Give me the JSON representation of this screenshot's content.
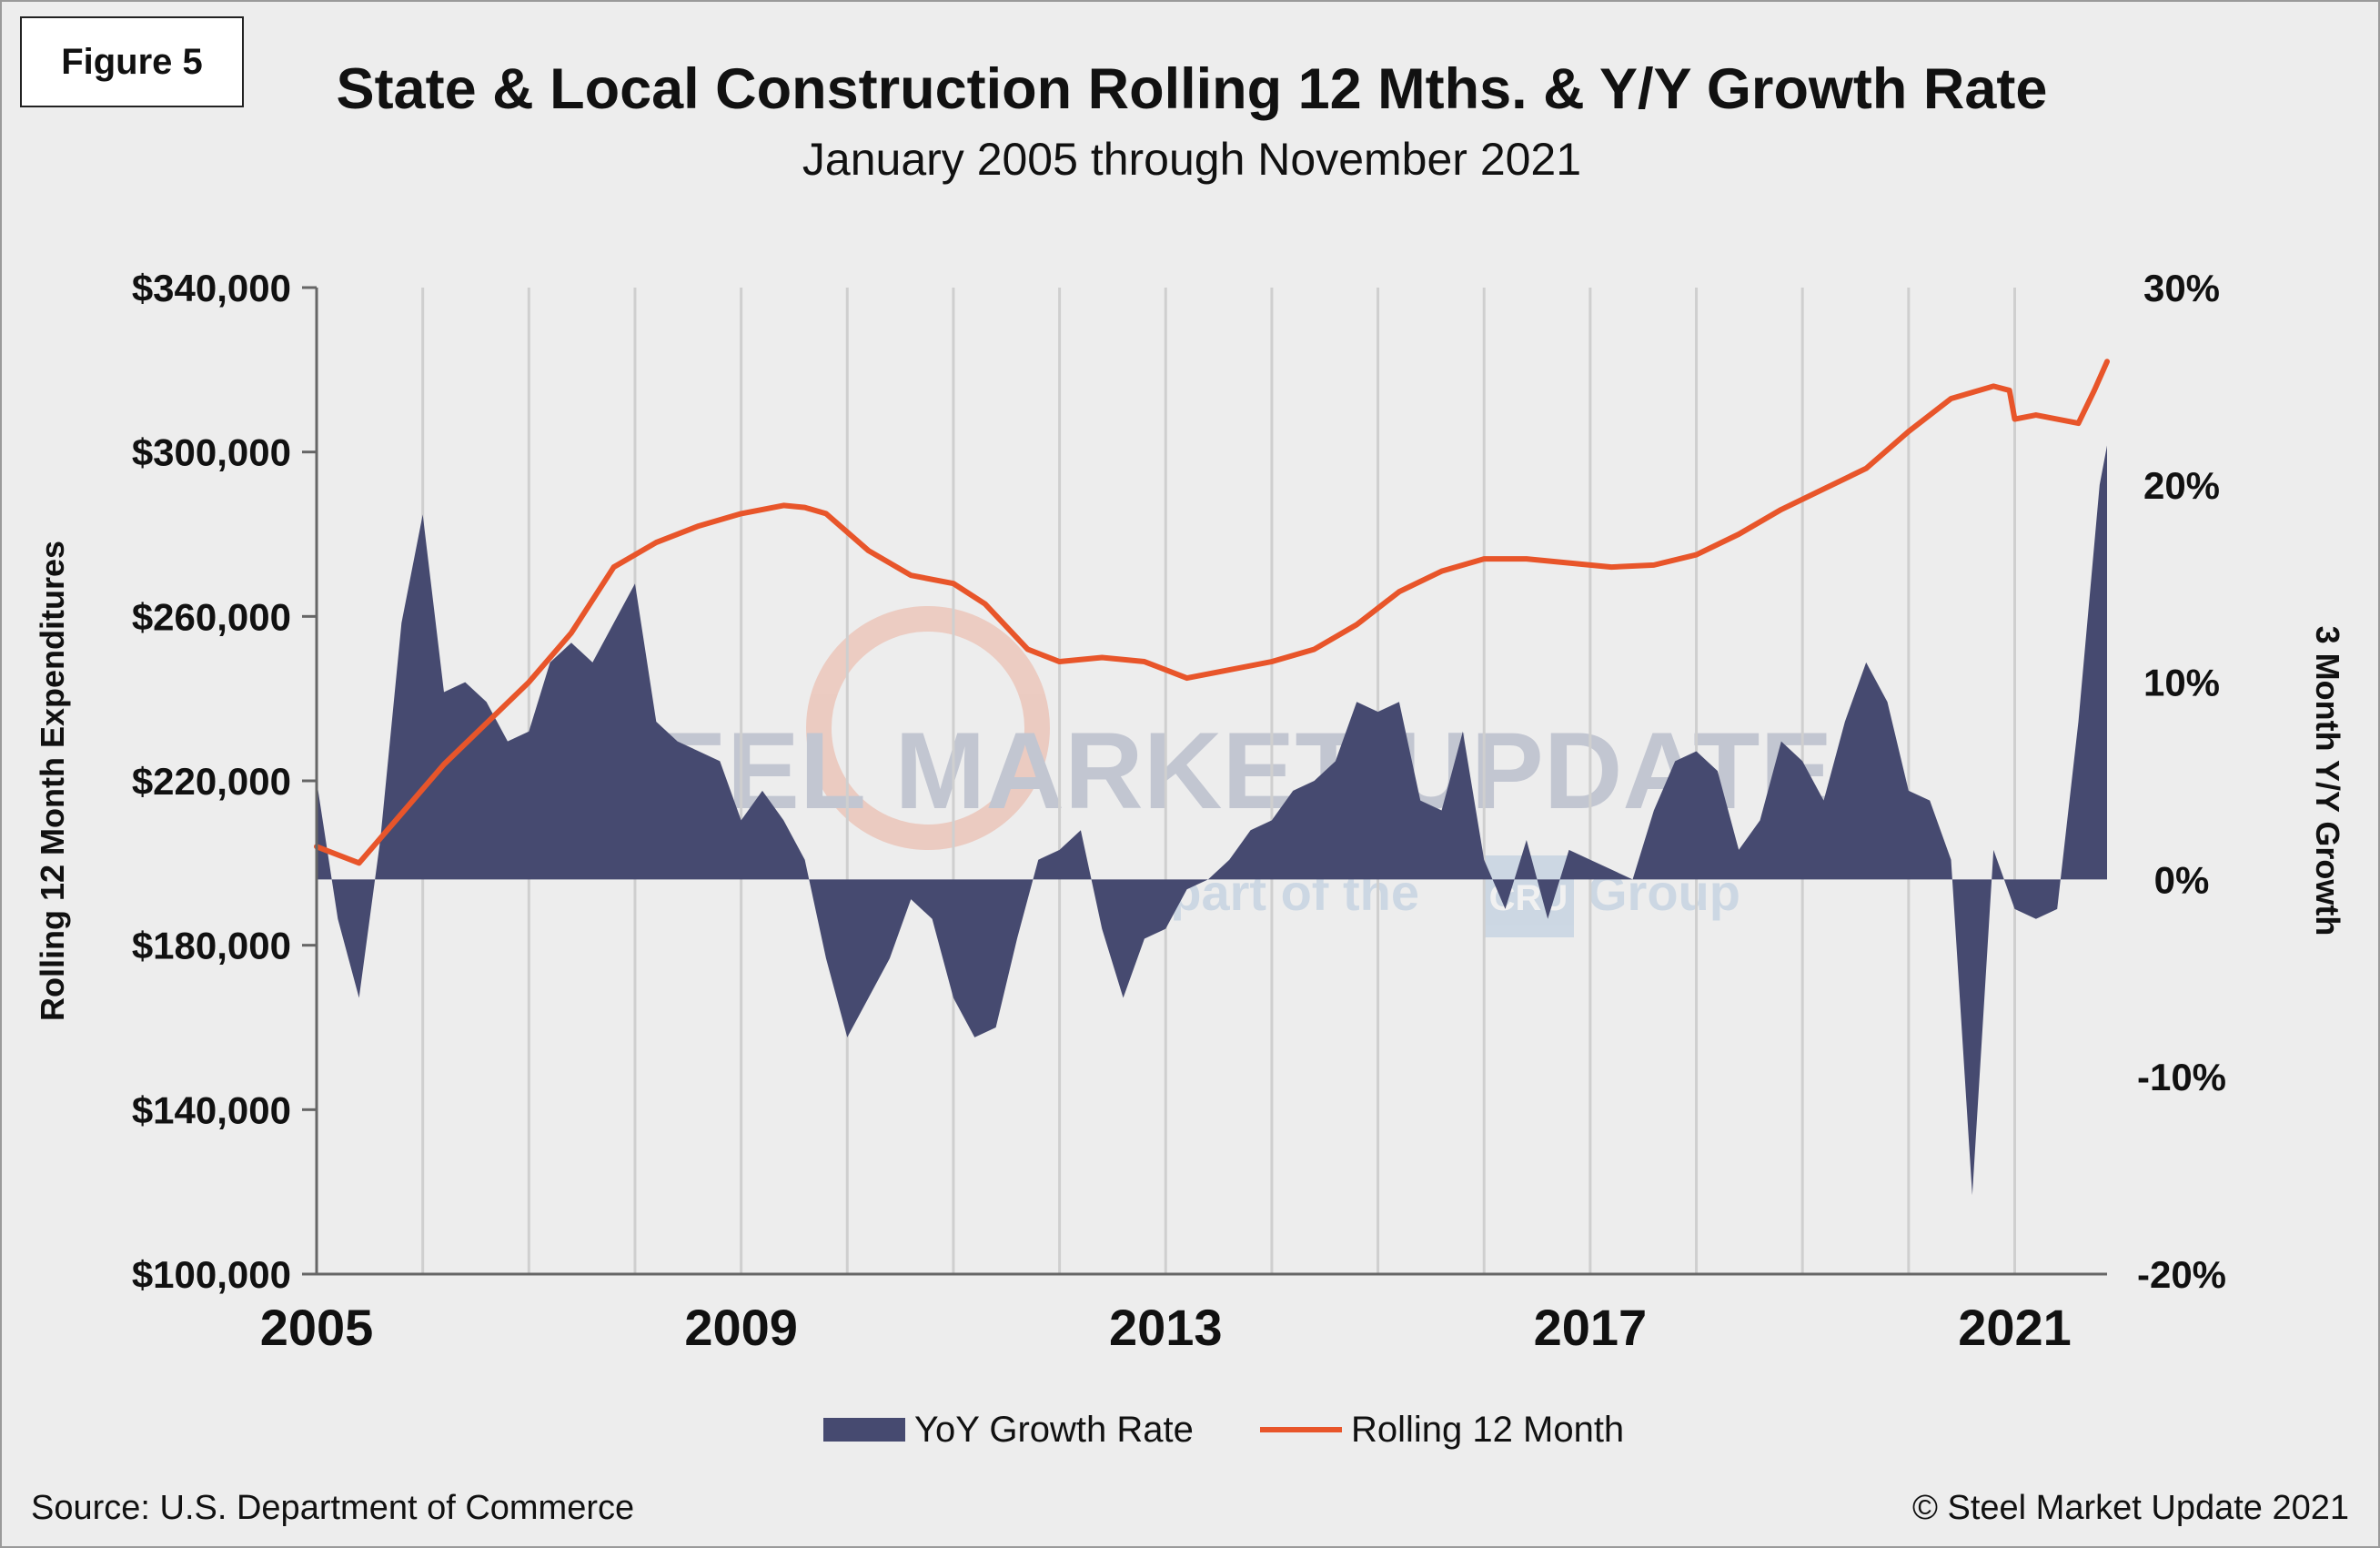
{
  "figure_label": "Figure 5",
  "title": "State & Local Construction Rolling 12 Mths. & Y/Y Growth Rate",
  "subtitle": "January 2005 through November 2021",
  "source": "Source: U.S. Department of Commerce",
  "copyright": "© Steel Market Update 2021",
  "watermark": {
    "brand": "STEEL MARKET UPDATE",
    "line_prefix": "part of the",
    "badge": "CRU",
    "line_suffix": "Group"
  },
  "colors": {
    "area": "#464a70",
    "line": "#e8552a",
    "grid": "#cfcfcf",
    "background": "#ededed"
  },
  "chart_data": {
    "type": "area+line",
    "title": "State & Local Construction Rolling 12 Mths. & Y/Y Growth Rate",
    "subtitle": "January 2005 through November 2021",
    "x_tick_labels": [
      "2005",
      "2009",
      "2013",
      "2017",
      "2021"
    ],
    "left_axis": {
      "label": "Rolling 12 Month Expenditures",
      "range": [
        100000,
        340000
      ],
      "ticks": [
        "$100,000",
        "$140,000",
        "$180,000",
        "$220,000",
        "$260,000",
        "$300,000",
        "$340,000"
      ]
    },
    "right_axis": {
      "label": "3 Month Y/Y Growth",
      "range": [
        -20,
        30
      ],
      "ticks": [
        "-20%",
        "-10%",
        "0%",
        "10%",
        "20%",
        "30%"
      ]
    },
    "legend": {
      "position": "bottom-center",
      "entries": [
        "YoY Growth Rate",
        "Rolling 12 Month"
      ]
    },
    "grid": {
      "vertical": true,
      "horizontal": false
    },
    "series": [
      {
        "name": "YoY Growth Rate",
        "type": "area",
        "axis": "right",
        "unit": "%",
        "x": [
          2005.0,
          2005.2,
          2005.4,
          2005.6,
          2005.8,
          2006.0,
          2006.2,
          2006.4,
          2006.6,
          2006.8,
          2007.0,
          2007.2,
          2007.4,
          2007.6,
          2007.8,
          2008.0,
          2008.2,
          2008.4,
          2008.6,
          2008.8,
          2009.0,
          2009.2,
          2009.4,
          2009.6,
          2009.8,
          2010.0,
          2010.2,
          2010.4,
          2010.6,
          2010.8,
          2011.0,
          2011.2,
          2011.4,
          2011.6,
          2011.8,
          2012.0,
          2012.2,
          2012.4,
          2012.6,
          2012.8,
          2013.0,
          2013.2,
          2013.4,
          2013.6,
          2013.8,
          2014.0,
          2014.2,
          2014.4,
          2014.6,
          2014.8,
          2015.0,
          2015.2,
          2015.4,
          2015.6,
          2015.8,
          2016.0,
          2016.2,
          2016.4,
          2016.6,
          2016.8,
          2017.0,
          2017.2,
          2017.4,
          2017.6,
          2017.8,
          2018.0,
          2018.2,
          2018.4,
          2018.6,
          2018.8,
          2019.0,
          2019.2,
          2019.4,
          2019.6,
          2019.8,
          2020.0,
          2020.2,
          2020.4,
          2020.6,
          2020.8,
          2021.0,
          2021.2,
          2021.4,
          2021.6,
          2021.8,
          2021.87
        ],
        "values": [
          5.0,
          -2.0,
          -6.0,
          2.0,
          13.0,
          18.5,
          9.5,
          10.0,
          9.0,
          7.0,
          7.5,
          11.0,
          12.0,
          11.0,
          13.0,
          15.0,
          8.0,
          7.0,
          6.5,
          6.0,
          3.0,
          4.5,
          3.0,
          1.0,
          -4.0,
          -8.0,
          -6.0,
          -4.0,
          -1.0,
          -2.0,
          -6.0,
          -8.0,
          -7.5,
          -3.0,
          1.0,
          1.5,
          2.5,
          -2.5,
          -6.0,
          -3.0,
          -2.5,
          -0.5,
          0.0,
          1.0,
          2.5,
          3.0,
          4.5,
          5.0,
          6.0,
          9.0,
          8.5,
          9.0,
          4.0,
          3.5,
          7.5,
          1.0,
          -1.5,
          2.0,
          -2.0,
          1.5,
          1.0,
          0.5,
          0.0,
          3.5,
          6.0,
          6.5,
          5.5,
          1.5,
          3.0,
          7.0,
          6.0,
          4.0,
          8.0,
          11.0,
          9.0,
          4.5,
          4.0,
          1.0,
          -16.0,
          1.5,
          -1.5,
          -2.0,
          -1.5,
          8.0,
          20.0,
          22.0
        ]
      },
      {
        "name": "Rolling 12 Month",
        "type": "line",
        "axis": "left",
        "unit": "$",
        "x": [
          2005.0,
          2005.4,
          2005.8,
          2006.2,
          2006.6,
          2007.0,
          2007.4,
          2007.8,
          2008.2,
          2008.6,
          2009.0,
          2009.4,
          2009.6,
          2009.8,
          2010.2,
          2010.6,
          2011.0,
          2011.3,
          2011.7,
          2012.0,
          2012.4,
          2012.8,
          2013.2,
          2013.6,
          2014.0,
          2014.4,
          2014.8,
          2015.2,
          2015.6,
          2016.0,
          2016.4,
          2016.8,
          2017.2,
          2017.6,
          2018.0,
          2018.4,
          2018.8,
          2019.2,
          2019.6,
          2020.0,
          2020.4,
          2020.8,
          2020.95,
          2021.0,
          2021.2,
          2021.4,
          2021.6,
          2021.75,
          2021.87
        ],
        "values": [
          204000,
          200000,
          212000,
          224000,
          234000,
          244000,
          256000,
          272000,
          278000,
          282000,
          285000,
          287000,
          286500,
          285000,
          276000,
          270000,
          268000,
          263000,
          252000,
          249000,
          250000,
          249000,
          245000,
          247000,
          249000,
          252000,
          258000,
          266000,
          271000,
          274000,
          274000,
          273000,
          272000,
          272500,
          275000,
          280000,
          286000,
          291000,
          296000,
          305000,
          313000,
          316000,
          315000,
          308000,
          309000,
          308000,
          307000,
          315000,
          322000
        ]
      }
    ]
  }
}
